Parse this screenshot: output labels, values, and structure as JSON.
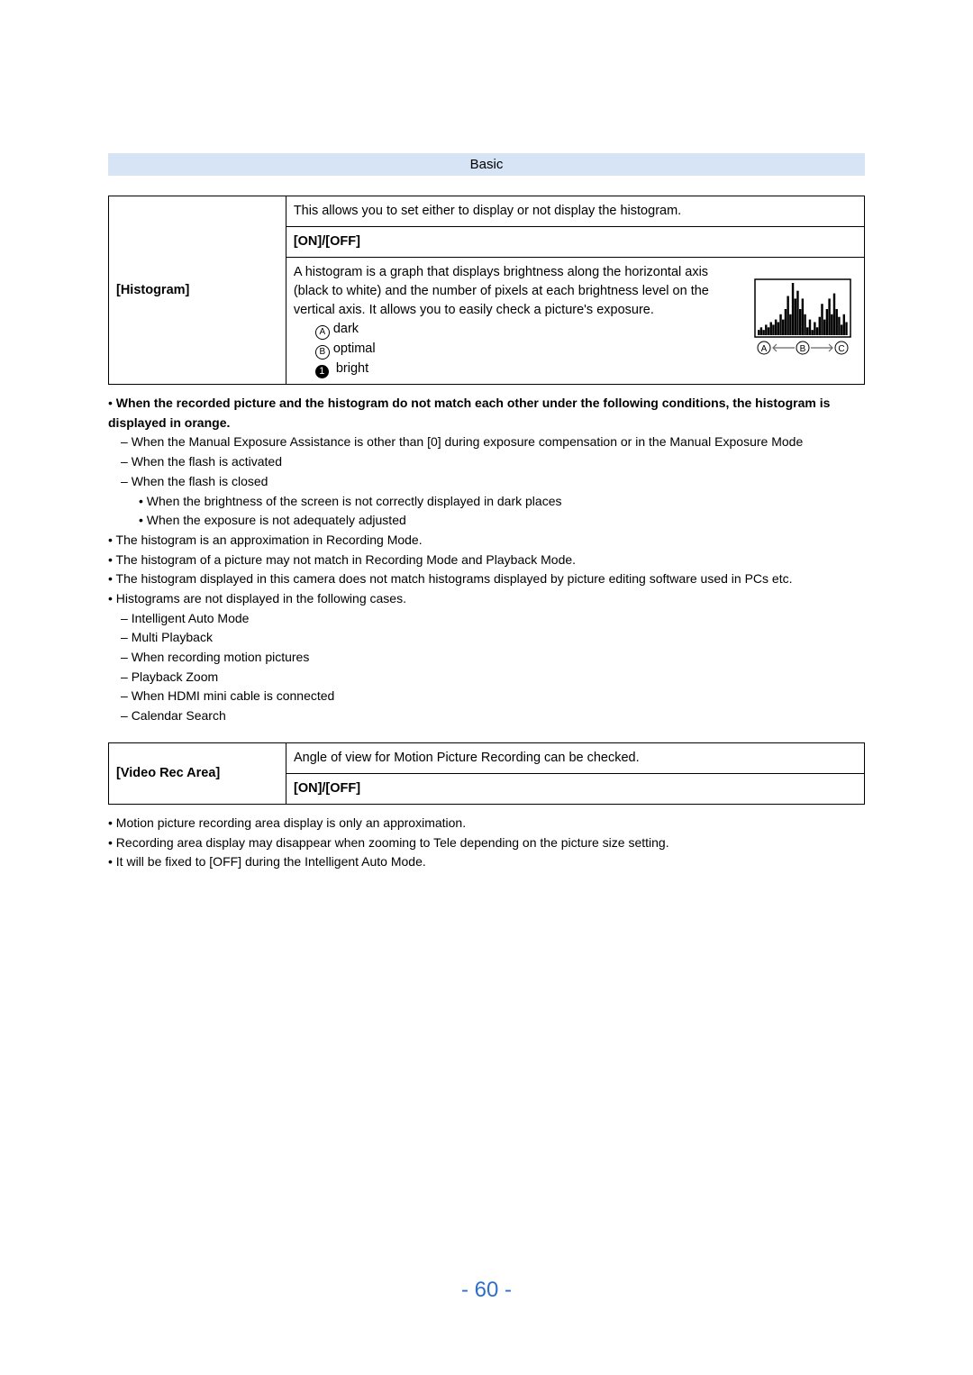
{
  "header": {
    "section": "Basic"
  },
  "histogram": {
    "label": "[Histogram]",
    "intro": "This allows you to set either to display or not display the histogram.",
    "options": "[ON]/[OFF]",
    "desc": "A histogram is a graph that displays brightness along the horizontal axis (black to white) and the number of pixels at each brightness level on the vertical axis. It allows you to easily check a picture's exposure.",
    "a": "dark",
    "b": "optimal",
    "c": "bright",
    "labelA": "A",
    "labelB": "B",
    "labelC": "C",
    "bullet": "1"
  },
  "notesHist": {
    "lead": "When the recorded picture and the histogram do not match each other under the following conditions, the histogram is displayed in orange.",
    "d1": "When the Manual Exposure Assistance is other than [0] during exposure compensation or in the Manual Exposure Mode",
    "d2": "When the flash is activated",
    "d3": "When the flash is closed",
    "s1": "When the brightness of the screen is not correctly displayed in dark places",
    "s2": "When the exposure is not adequately adjusted",
    "b1": "The histogram is an approximation in Recording Mode.",
    "b2": "The histogram of a picture may not match in Recording Mode and Playback Mode.",
    "b3": "The histogram displayed in this camera does not match histograms displayed by picture editing software used in PCs etc.",
    "b4": "Histograms are not displayed in the following cases.",
    "e1": "Intelligent Auto Mode",
    "e2": "Multi Playback",
    "e3": "When recording motion pictures",
    "e4": "Playback Zoom",
    "e5": "When HDMI mini cable is connected",
    "e6": "Calendar Search"
  },
  "videoRec": {
    "label": "[Video Rec Area]",
    "desc": "Angle of view for Motion Picture Recording can be checked.",
    "options": "[ON]/[OFF]"
  },
  "notesVid": {
    "v1": "Motion picture recording area display is only an approximation.",
    "v2": "Recording area display may disappear when zooming to Tele depending on the picture size setting.",
    "v3": "It will be fixed to [OFF] during the Intelligent Auto Mode."
  },
  "pageNumber": "- 60 -",
  "histChart": {
    "type": "histogram-icon",
    "box_stroke": "#000",
    "fill": "#fff",
    "arrow_color": "#666",
    "bars": [
      2,
      3,
      2,
      4,
      3,
      5,
      4,
      6,
      5,
      8,
      6,
      10,
      15,
      8,
      20,
      14,
      17,
      10,
      14,
      8,
      3,
      6,
      2,
      5,
      3,
      7,
      12,
      6,
      10,
      14,
      8,
      16,
      10,
      7,
      4,
      8,
      5
    ]
  }
}
